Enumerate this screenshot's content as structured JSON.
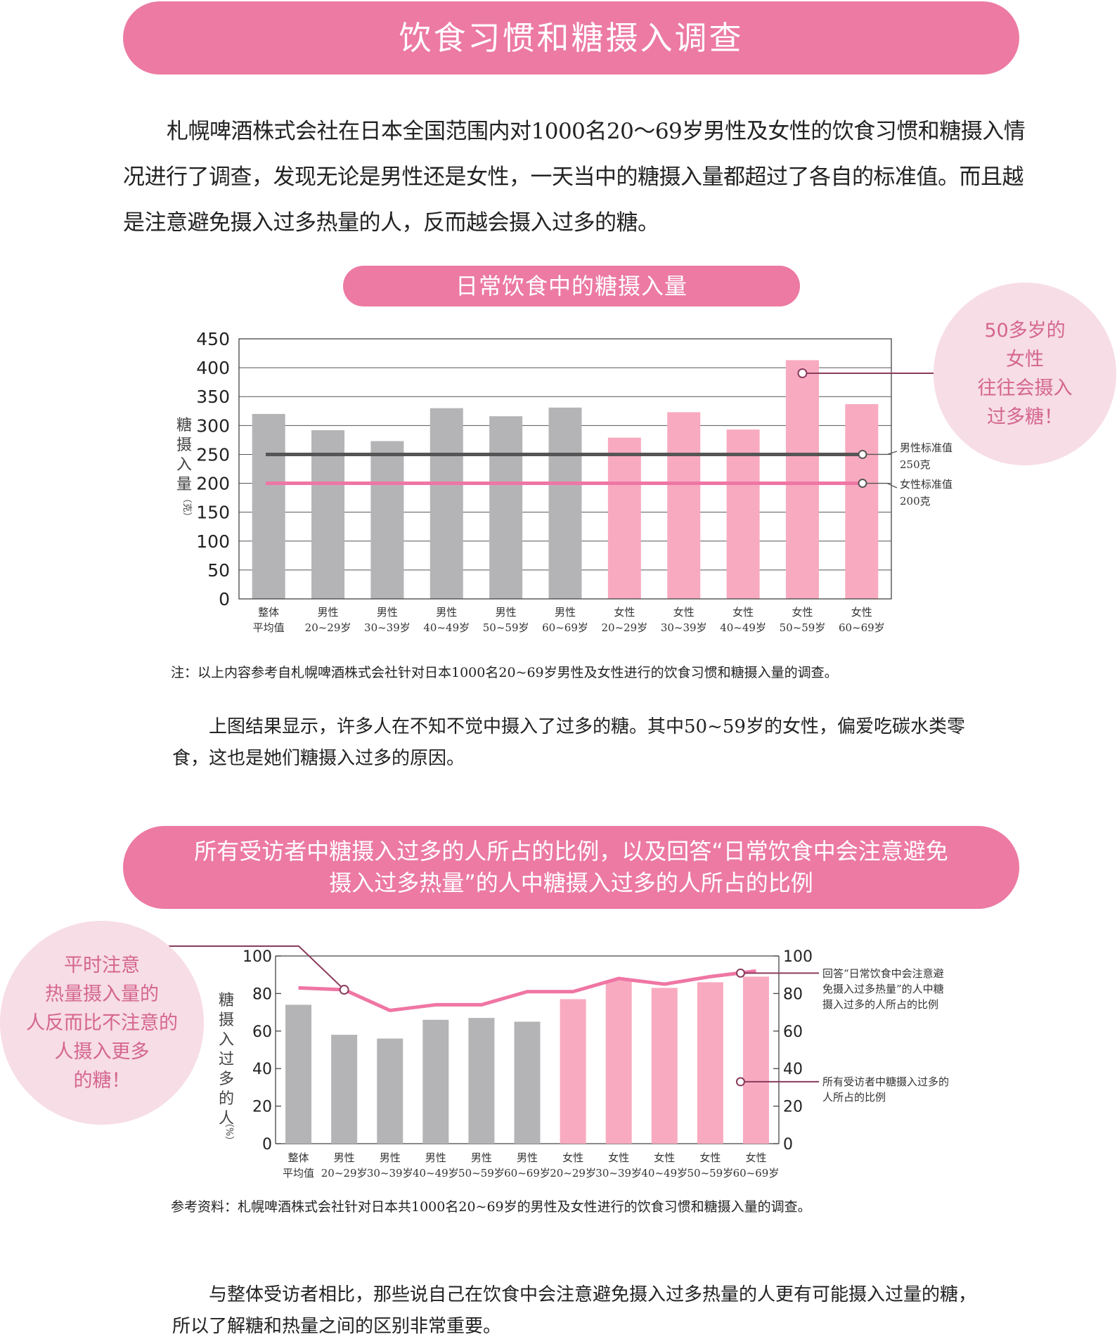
{
  "main_title": "饮食习惯和糖摄入调查",
  "intro_text": "札幌啤酒株式会社在日本全国范围内对1000名20～69岁男性及女性的饮食习惯和糖摄入情况进行了调查，发现无论是男性还是女性，一天当中的糖摄入量都超过了各自的标准值。而且越是注意避免摄入过多热量的人，反而越会摄入过多的糖。",
  "chart1_banner": "日常饮食中的糖摄入量",
  "bubble1": [
    "50多岁的",
    "女性",
    "往往会摄入",
    "过多糖！"
  ],
  "note1": "注：以上内容参考自札幌啤酒株式会社针对日本1000名20~69岁男性及女性进行的饮食习惯和糖摄入量的调查。",
  "para_after_chart1": "上图结果显示，许多人在不知不觉中摄入了过多的糖。其中50~59岁的女性，偏爱吃碳水类零食，这也是她们糖摄入过多的原因。",
  "chart2_banner": [
    "所有受访者中糖摄入过多的人所占的比例，以及回答“日常饮食中会注意避免",
    "摄入过多热量”的人中糖摄入过多的人所占的比例"
  ],
  "bubble2": [
    "平时注意",
    "热量摄入量的",
    "人反而比不注意的",
    "人摄入更多",
    "的糖！"
  ],
  "note2": "参考资料：札幌啤酒株式会社针对日本共1000名20~69岁的男性及女性进行的饮食习惯和糖摄入量的调查。",
  "para_after_chart2": "与整体受访者相比，那些说自己在饮食中会注意避免摄入过多热量的人更有可能摄入过量的糖，所以了解糖和热量之间的区别非常重要。",
  "colors": {
    "male": "#b4b4b6",
    "female": "#f8aac0",
    "pink_line": "#ef76a4",
    "gray_line": "#555555",
    "banner": "#ec7aa3"
  },
  "chart_data": [
    {
      "type": "bar",
      "categories": [
        [
          "整体",
          "平均值"
        ],
        [
          "男性",
          "20~29岁"
        ],
        [
          "男性",
          "30~39岁"
        ],
        [
          "男性",
          "40~49岁"
        ],
        [
          "男性",
          "50~59岁"
        ],
        [
          "男性",
          "60~69岁"
        ],
        [
          "女性",
          "20~29岁"
        ],
        [
          "女性",
          "30~39岁"
        ],
        [
          "女性",
          "40~49岁"
        ],
        [
          "女性",
          "50~59岁"
        ],
        [
          "女性",
          "60~69岁"
        ]
      ],
      "values": [
        320,
        292,
        273,
        330,
        316,
        331,
        279,
        323,
        293,
        413,
        337
      ],
      "ylabel": [
        "糖",
        "摄",
        "入",
        "量"
      ],
      "ylabel_unit": "（克）",
      "ylim": [
        0,
        450
      ],
      "yticks": [
        0,
        50,
        100,
        150,
        200,
        250,
        300,
        350,
        400,
        450
      ],
      "grid": true,
      "reference_lines": [
        {
          "value": 250,
          "label": [
            "男性标准值",
            "250克"
          ]
        },
        {
          "value": 200,
          "label": [
            "女性标准值",
            "200克"
          ]
        }
      ]
    },
    {
      "type": "bar",
      "categories": [
        [
          "整体",
          "平均值"
        ],
        [
          "男性",
          "20~29岁"
        ],
        [
          "男性",
          "30~39岁"
        ],
        [
          "男性",
          "40~49岁"
        ],
        [
          "男性",
          "50~59岁"
        ],
        [
          "男性",
          "60~69岁"
        ],
        [
          "女性",
          "20~29岁"
        ],
        [
          "女性",
          "30~39岁"
        ],
        [
          "女性",
          "40~49岁"
        ],
        [
          "女性",
          "50~59岁"
        ],
        [
          "女性",
          "60~69岁"
        ]
      ],
      "series": [
        {
          "name": "所有受访者中糖摄入过多的人所占的比例",
          "type": "bar",
          "values": [
            74,
            58,
            56,
            66,
            67,
            65,
            77,
            87,
            83,
            86,
            89
          ]
        },
        {
          "name": "回答“日常饮食中会注意避免摄入过多热量”的人中糖摄入过多的人所占的比例",
          "type": "line",
          "values": [
            83,
            82,
            71,
            74,
            74,
            81,
            81,
            88,
            85,
            89,
            92
          ]
        }
      ],
      "bar_legend": [
        "所有受访者中糖摄入过多的",
        "人所占的比例"
      ],
      "line_legend": [
        "回答“日常饮食中会注意避",
        "免摄入过多热量”的人中糖",
        "摄入过多的人所占的比例"
      ],
      "ylabel": [
        "糖",
        "摄",
        "入",
        "过",
        "多",
        "的",
        "人"
      ],
      "ylabel_unit": "（%）",
      "ylim": [
        0,
        100
      ],
      "yticks": [
        0,
        20,
        40,
        60,
        80,
        100
      ],
      "grid": false
    }
  ]
}
